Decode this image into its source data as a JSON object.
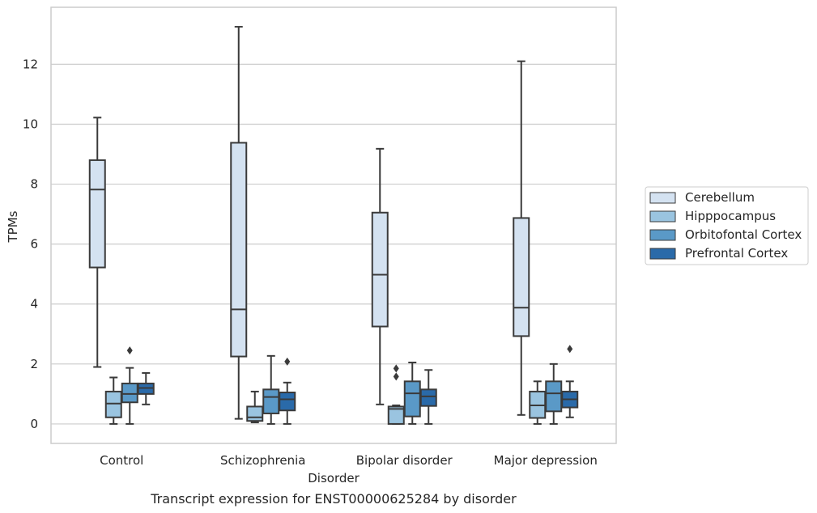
{
  "caption": "Transcript expression for ENST00000625284 by disorder",
  "chart_data": {
    "type": "box",
    "title": "",
    "xlabel": "Disorder",
    "ylabel": "TPMs",
    "ylim": [
      -0.65,
      13.9
    ],
    "yticks": [
      0,
      2,
      4,
      6,
      8,
      10,
      12
    ],
    "ytick_labels": [
      "0",
      "2",
      "4",
      "6",
      "8",
      "10",
      "12"
    ],
    "categories": [
      "Control",
      "Schizophrenia",
      "Bipolar disorder",
      "Major depression"
    ],
    "grid": "horizontal",
    "legend_position": "right",
    "series": [
      {
        "name": "Cerebellum",
        "color": "#d4e2f1",
        "boxes": [
          {
            "whisker_low": 1.9,
            "q1": 5.22,
            "median": 7.82,
            "q3": 8.8,
            "whisker_high": 10.22,
            "outliers": []
          },
          {
            "whisker_low": 0.17,
            "q1": 2.25,
            "median": 3.82,
            "q3": 9.38,
            "whisker_high": 13.25,
            "outliers": []
          },
          {
            "whisker_low": 0.65,
            "q1": 3.25,
            "median": 4.98,
            "q3": 7.05,
            "whisker_high": 9.18,
            "outliers": []
          },
          {
            "whisker_low": 0.3,
            "q1": 2.93,
            "median": 3.88,
            "q3": 6.87,
            "whisker_high": 12.1,
            "outliers": []
          }
        ]
      },
      {
        "name": "Hipppocampus",
        "color": "#9ac4e0",
        "boxes": [
          {
            "whisker_low": 0.0,
            "q1": 0.22,
            "median": 0.68,
            "q3": 1.08,
            "whisker_high": 1.55,
            "outliers": []
          },
          {
            "whisker_low": 0.05,
            "q1": 0.1,
            "median": 0.22,
            "q3": 0.58,
            "whisker_high": 1.08,
            "outliers": []
          },
          {
            "whisker_low": 0.0,
            "q1": 0.0,
            "median": 0.5,
            "q3": 0.58,
            "whisker_high": 0.62,
            "outliers": [
              1.58,
              1.85
            ]
          },
          {
            "whisker_low": 0.0,
            "q1": 0.2,
            "median": 0.62,
            "q3": 1.08,
            "whisker_high": 1.42,
            "outliers": []
          }
        ]
      },
      {
        "name": "Orbitofontal Cortex",
        "color": "#5a99c7",
        "boxes": [
          {
            "whisker_low": 0.0,
            "q1": 0.72,
            "median": 1.0,
            "q3": 1.35,
            "whisker_high": 1.87,
            "outliers": [
              2.45
            ]
          },
          {
            "whisker_low": 0.0,
            "q1": 0.35,
            "median": 0.9,
            "q3": 1.15,
            "whisker_high": 2.27,
            "outliers": []
          },
          {
            "whisker_low": 0.0,
            "q1": 0.25,
            "median": 1.02,
            "q3": 1.42,
            "whisker_high": 2.05,
            "outliers": []
          },
          {
            "whisker_low": 0.0,
            "q1": 0.42,
            "median": 1.02,
            "q3": 1.42,
            "whisker_high": 2.0,
            "outliers": []
          }
        ]
      },
      {
        "name": "Prefrontal Cortex",
        "color": "#2a6aa9",
        "boxes": [
          {
            "whisker_low": 0.65,
            "q1": 1.0,
            "median": 1.2,
            "q3": 1.35,
            "whisker_high": 1.7,
            "outliers": []
          },
          {
            "whisker_low": 0.0,
            "q1": 0.45,
            "median": 0.82,
            "q3": 1.05,
            "whisker_high": 1.38,
            "outliers": [
              2.08
            ]
          },
          {
            "whisker_low": 0.0,
            "q1": 0.6,
            "median": 0.92,
            "q3": 1.15,
            "whisker_high": 1.8,
            "outliers": []
          },
          {
            "whisker_low": 0.22,
            "q1": 0.55,
            "median": 0.82,
            "q3": 1.08,
            "whisker_high": 1.42,
            "outliers": [
              2.5
            ]
          }
        ]
      }
    ]
  }
}
